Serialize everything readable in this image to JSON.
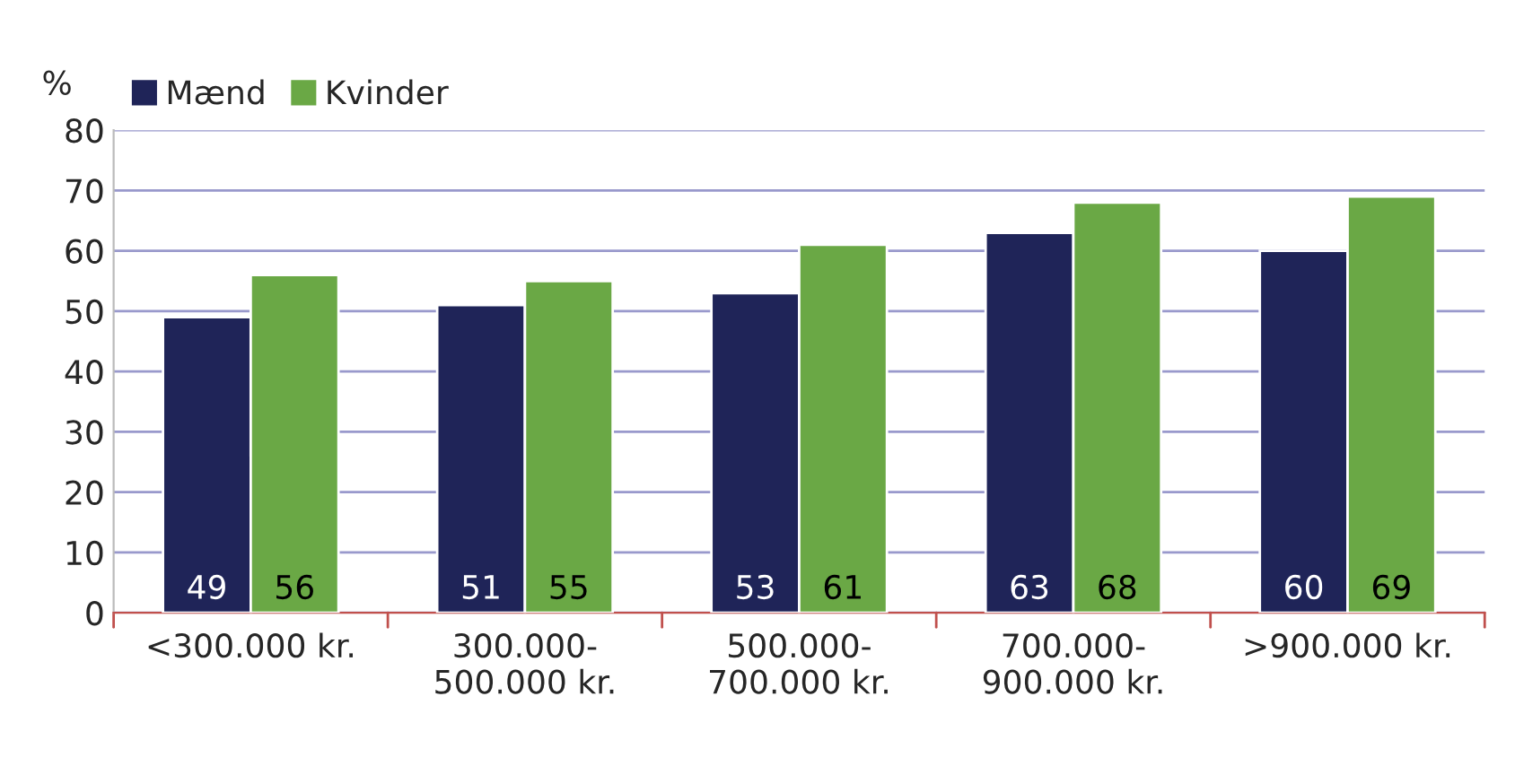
{
  "chart_data": {
    "type": "bar",
    "ylabel": "%",
    "categories": [
      "<300.000 kr.",
      "300.000-\n500.000 kr.",
      "500.000-\n700.000 kr.",
      "700.000-\n900.000 kr.",
      ">900.000 kr."
    ],
    "series": [
      {
        "name": "Mænd",
        "color": "#1f2458",
        "values": [
          49,
          51,
          53,
          63,
          60
        ]
      },
      {
        "name": "Kvinder",
        "color": "#6aa845",
        "values": [
          56,
          55,
          61,
          68,
          69
        ]
      }
    ],
    "ylim": [
      0,
      80
    ],
    "yticks": [
      0,
      10,
      20,
      30,
      40,
      50,
      60,
      70,
      80
    ],
    "grid": "y",
    "legend": "top left",
    "data_labels": true
  }
}
